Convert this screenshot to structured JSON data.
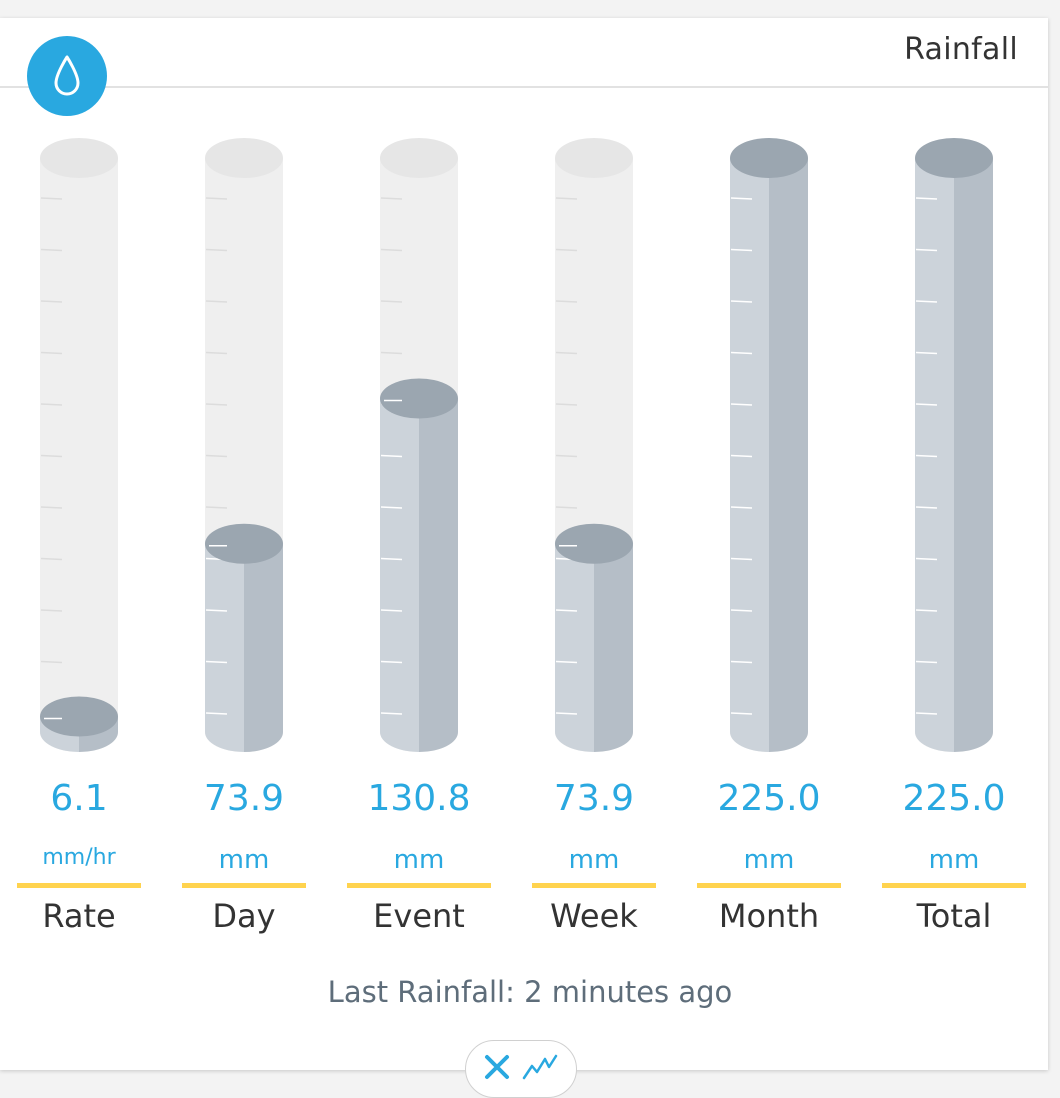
{
  "widget": {
    "title": "Rainfall",
    "last_rainfall_label": "Last Rainfall: 2 minutes ago",
    "icon": "water-drop-icon",
    "accent_color": "#29a8e0",
    "underline_color": "#ffd34e"
  },
  "gauges": [
    {
      "key": "rate",
      "value": "6.1",
      "unit": "mm/hr",
      "label": "Rate",
      "fill": 0.027
    },
    {
      "key": "day",
      "value": "73.9",
      "unit": "mm",
      "label": "Day",
      "fill": 0.328
    },
    {
      "key": "event",
      "value": "130.8",
      "unit": "mm",
      "label": "Event",
      "fill": 0.581
    },
    {
      "key": "week",
      "value": "73.9",
      "unit": "mm",
      "label": "Week",
      "fill": 0.328
    },
    {
      "key": "month",
      "value": "225.0",
      "unit": "mm",
      "label": "Month",
      "fill": 1.0
    },
    {
      "key": "total",
      "value": "225.0",
      "unit": "mm",
      "label": "Total",
      "fill": 1.0
    }
  ],
  "controls": {
    "close_icon": "close-icon",
    "chart_icon": "line-chart-icon"
  }
}
